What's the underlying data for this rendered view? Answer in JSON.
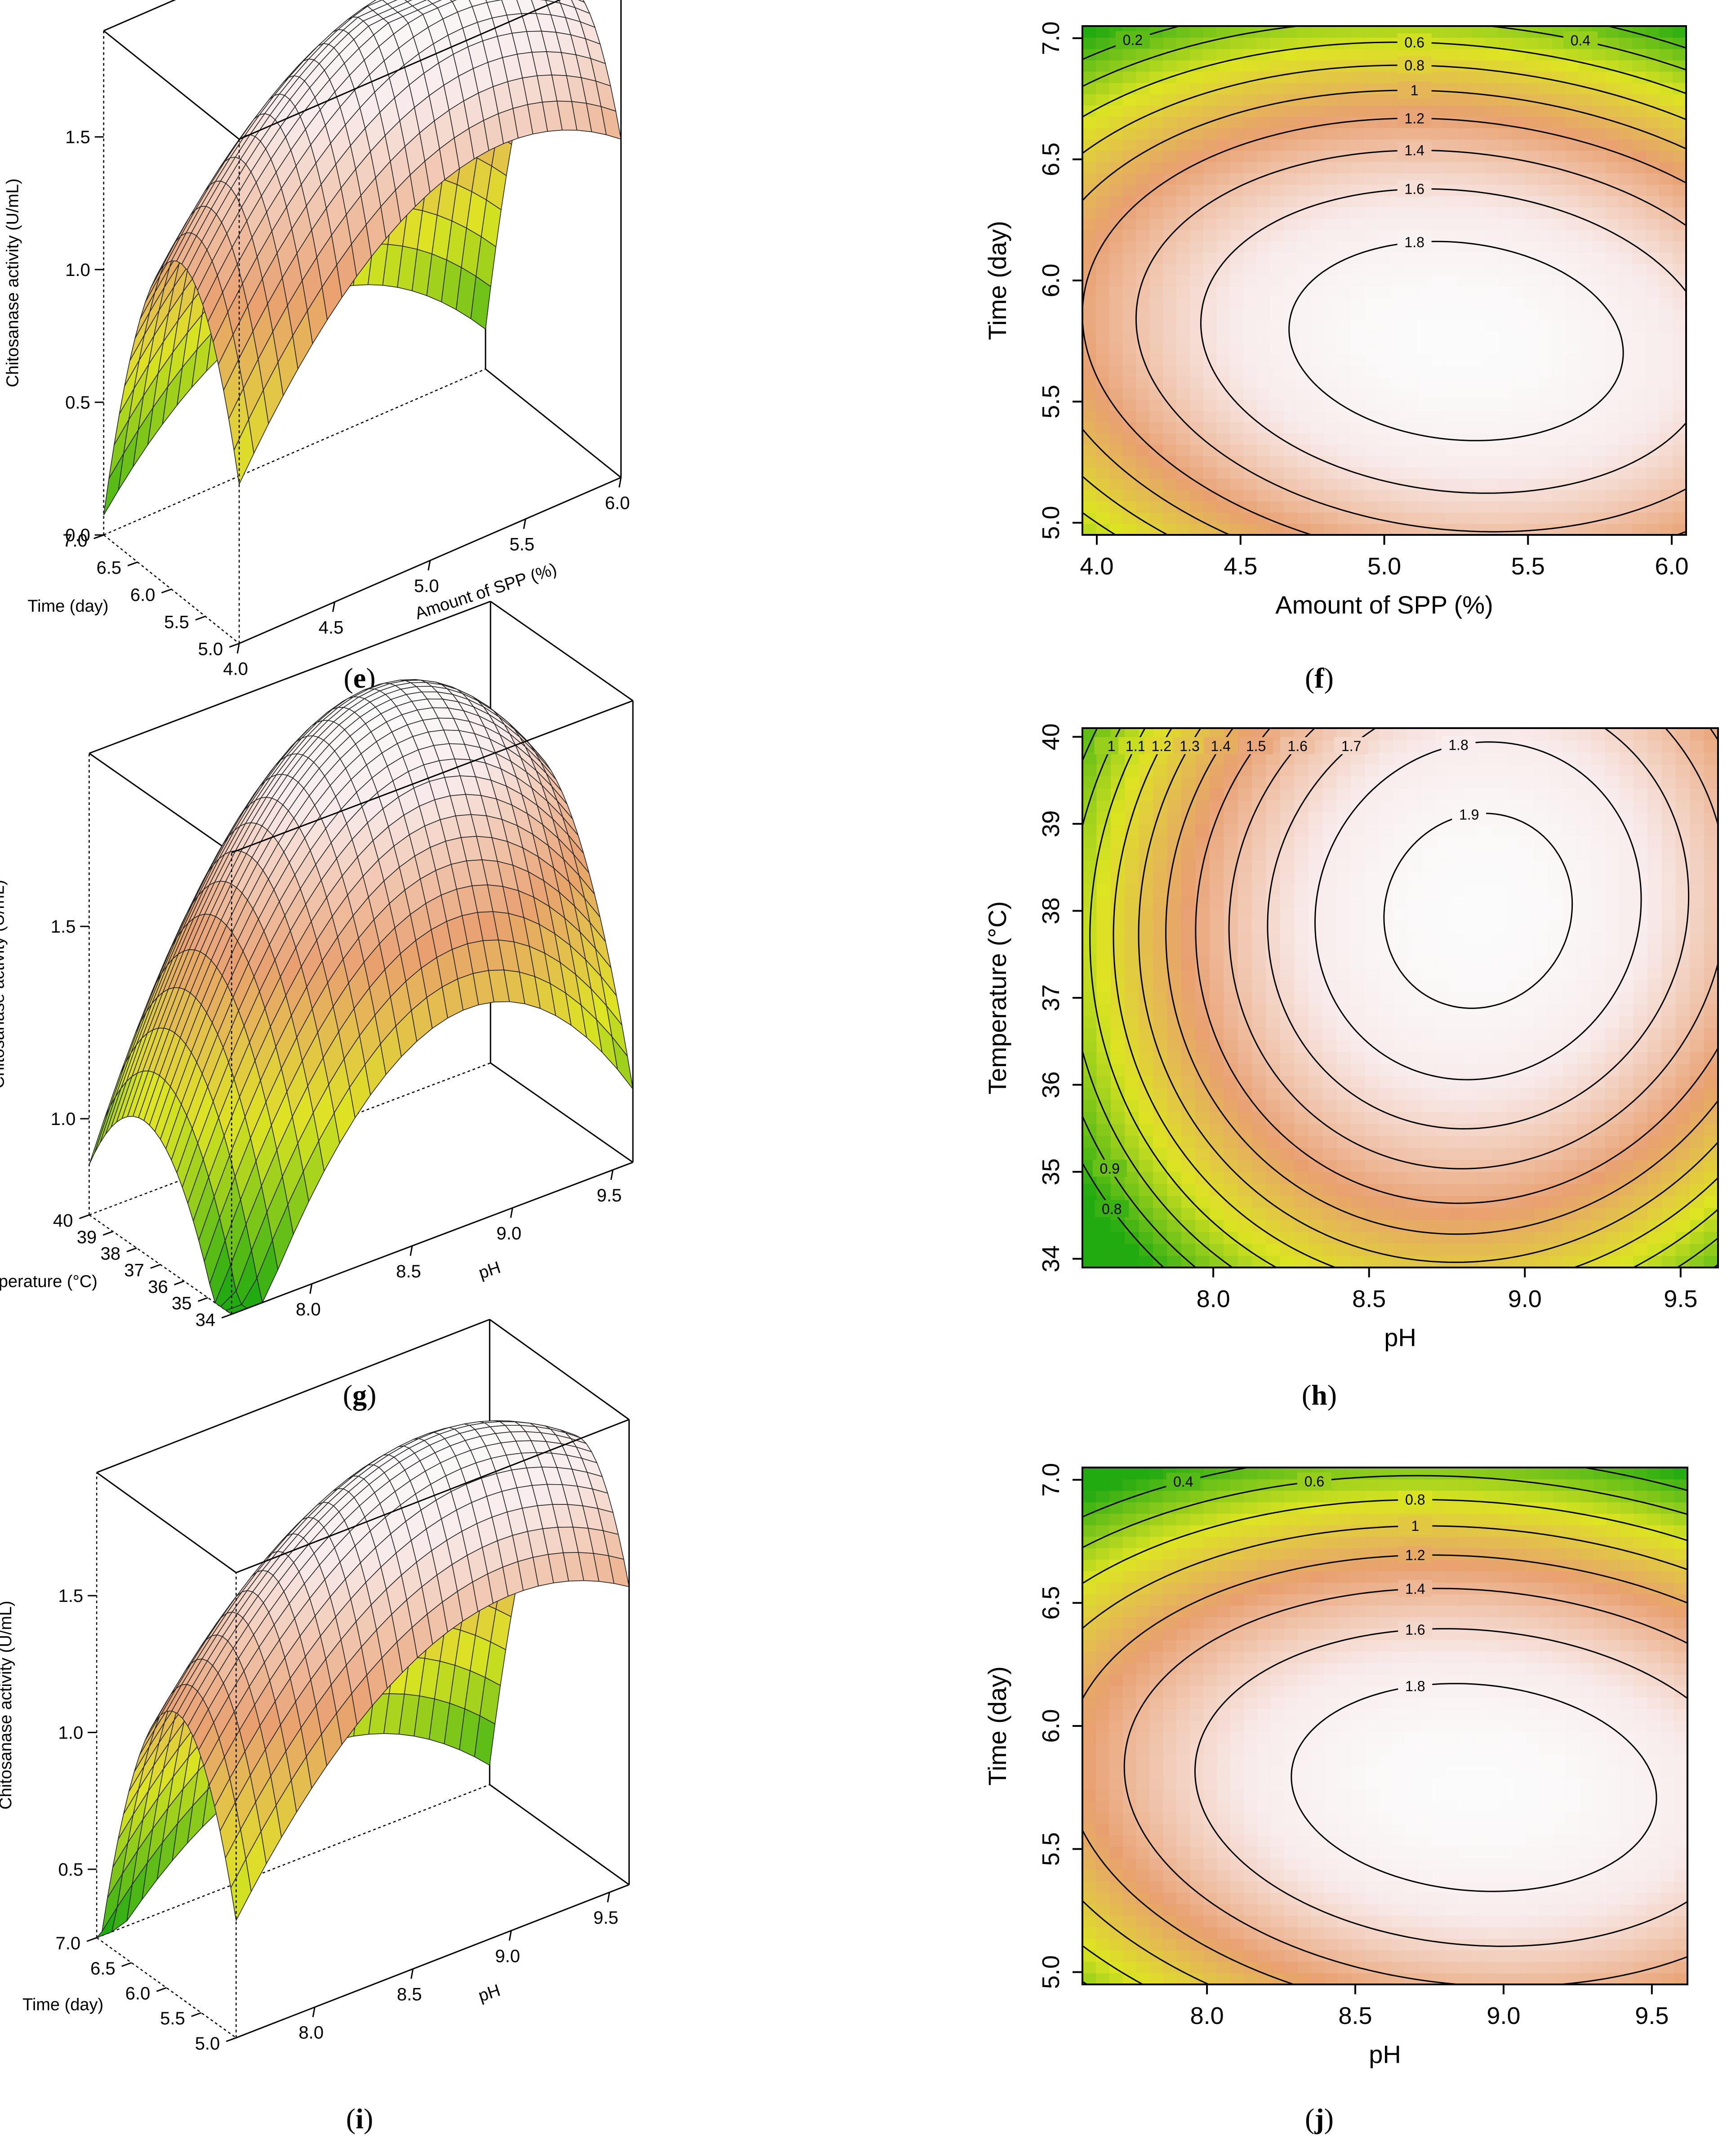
{
  "palette": {
    "low": "#22aa11",
    "mid_low": "#dde422",
    "mid": "#e8a070",
    "high": "#f8eaea",
    "peak": "#fbfbfb"
  },
  "chart_data": [
    {
      "id": "e",
      "type": "surface3d",
      "label": "e",
      "zlabel": "Chitosanase activity (U/mL)",
      "xlabel": "Amount of SPP (%)",
      "ylabel": "Time (day)",
      "x_ticks": [
        "4.0",
        "4.5",
        "5.0",
        "5.5",
        "6.0"
      ],
      "y_ticks": [
        "5.0",
        "5.5",
        "6.0",
        "6.5",
        "7.0"
      ],
      "z_ticks": [
        "0.0",
        "0.5",
        "1.0",
        "1.5"
      ],
      "xlim": [
        4.0,
        6.0
      ],
      "ylim": [
        5.0,
        7.0
      ],
      "zlim": [
        0.0,
        1.9
      ],
      "model": {
        "c": 1.95,
        "x0": 5.25,
        "y0": 5.75,
        "ax": 0.45,
        "ay": 0.9,
        "bxy": 0.15
      },
      "color_range": [
        0.0,
        1.95
      ]
    },
    {
      "id": "f",
      "type": "contour",
      "label": "f",
      "xlabel": "Amount of SPP (%)",
      "ylabel": "Time (day)",
      "x_ticks": [
        "4.0",
        "4.5",
        "5.0",
        "5.5",
        "6.0"
      ],
      "y_ticks": [
        "5.0",
        "5.5",
        "6.0",
        "6.5",
        "7.0"
      ],
      "xlim": [
        3.95,
        6.05
      ],
      "ylim": [
        4.95,
        7.05
      ],
      "contour_levels": [
        0.2,
        0.4,
        0.6,
        0.8,
        1.0,
        1.2,
        1.4,
        1.6,
        1.8
      ],
      "contour_labels": [
        "0.2",
        "0.4",
        "0.6",
        "0.8",
        "1",
        "1.2",
        "1.4",
        "1.6",
        "1.8"
      ],
      "model": {
        "c": 1.95,
        "x0": 5.25,
        "y0": 5.75,
        "ax": 0.45,
        "ay": 0.9,
        "bxy": 0.15
      },
      "color_range": [
        0.0,
        1.95
      ]
    },
    {
      "id": "g",
      "type": "surface3d",
      "label": "g",
      "zlabel": "Chitosanase activity (U/mL)",
      "xlabel": "pH",
      "ylabel": "Temperature (°C)",
      "x_ticks": [
        "8.0",
        "8.5",
        "9.0",
        "9.5"
      ],
      "y_ticks": [
        "34",
        "35",
        "36",
        "37",
        "38",
        "39",
        "40"
      ],
      "z_ticks": [
        "1.0",
        "1.5"
      ],
      "xlim": [
        7.6,
        9.6
      ],
      "ylim": [
        34,
        40
      ],
      "zlim": [
        0.75,
        1.95
      ],
      "model": {
        "c": 1.95,
        "x0": 8.85,
        "y0": 38.0,
        "ax": 0.55,
        "ay": 0.04,
        "bxy": -0.02
      },
      "color_range": [
        0.75,
        1.95
      ]
    },
    {
      "id": "h",
      "type": "contour",
      "label": "h",
      "xlabel": "pH",
      "ylabel": "Temperature (°C)",
      "x_ticks": [
        "8.0",
        "8.5",
        "9.0",
        "9.5"
      ],
      "y_ticks": [
        "34",
        "35",
        "36",
        "37",
        "38",
        "39",
        "40"
      ],
      "xlim": [
        7.58,
        9.62
      ],
      "ylim": [
        33.9,
        40.1
      ],
      "contour_levels": [
        0.8,
        0.9,
        1.0,
        1.1,
        1.2,
        1.3,
        1.4,
        1.5,
        1.6,
        1.7,
        1.8,
        1.9
      ],
      "contour_labels": [
        "0.8",
        "0.9",
        "1",
        "1.1",
        "1.2",
        "1.3",
        "1.4",
        "1.5",
        "1.6",
        "1.7",
        "1.8",
        "1.9"
      ],
      "model": {
        "c": 1.95,
        "x0": 8.85,
        "y0": 38.0,
        "ax": 0.55,
        "ay": 0.04,
        "bxy": -0.02
      },
      "color_range": [
        0.75,
        1.95
      ]
    },
    {
      "id": "i",
      "type": "surface3d",
      "label": "i",
      "zlabel": "Chitosanase activity (U/mL)",
      "xlabel": "pH",
      "ylabel": "Time (day)",
      "x_ticks": [
        "8.0",
        "8.5",
        "9.0",
        "9.5"
      ],
      "y_ticks": [
        "5.0",
        "5.5",
        "6.0",
        "6.5",
        "7.0"
      ],
      "z_ticks": [
        "0.5",
        "1.0",
        "1.5"
      ],
      "xlim": [
        7.6,
        9.6
      ],
      "ylim": [
        5.0,
        7.0
      ],
      "zlim": [
        0.25,
        1.95
      ],
      "model": {
        "c": 1.95,
        "x0": 8.9,
        "y0": 5.75,
        "ax": 0.4,
        "ay": 0.85,
        "bxy": 0.12
      },
      "color_range": [
        0.25,
        1.95
      ]
    },
    {
      "id": "j",
      "type": "contour",
      "label": "j",
      "xlabel": "pH",
      "ylabel": "Time (day)",
      "x_ticks": [
        "8.0",
        "8.5",
        "9.0",
        "9.5"
      ],
      "y_ticks": [
        "5.0",
        "5.5",
        "6.0",
        "6.5",
        "7.0"
      ],
      "xlim": [
        7.58,
        9.62
      ],
      "ylim": [
        4.95,
        7.05
      ],
      "contour_levels": [
        0.4,
        0.6,
        0.8,
        1.0,
        1.2,
        1.4,
        1.6,
        1.8
      ],
      "contour_labels": [
        "0.4",
        "0.6",
        "0.8",
        "1",
        "1.2",
        "1.4",
        "1.6",
        "1.8"
      ],
      "model": {
        "c": 1.95,
        "x0": 8.9,
        "y0": 5.75,
        "ax": 0.4,
        "ay": 0.85,
        "bxy": 0.12
      },
      "color_range": [
        0.25,
        1.95
      ]
    }
  ]
}
